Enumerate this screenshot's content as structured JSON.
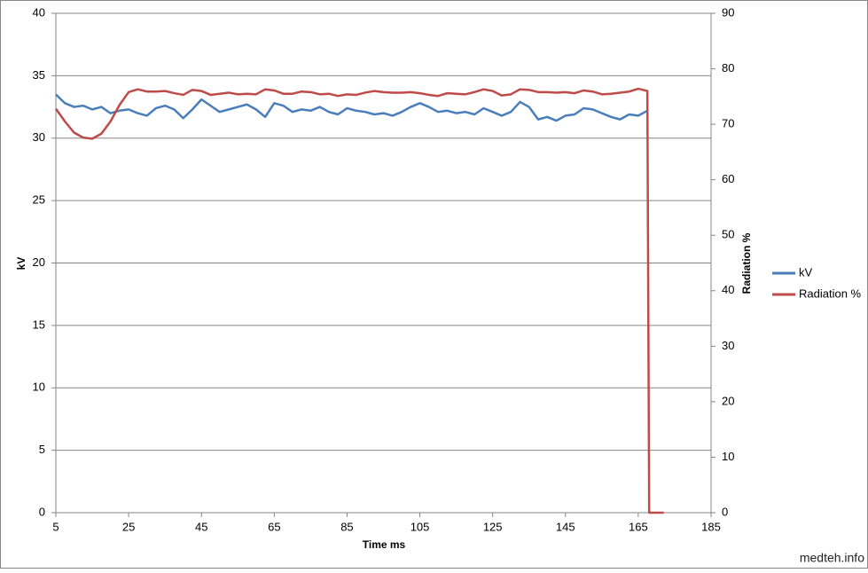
{
  "chart_data": {
    "type": "line",
    "x_label": "Time ms",
    "y_label": "kV",
    "y2_label": "Radiation %",
    "watermark": "medteh.info",
    "x": [
      5,
      7.5,
      10,
      12.5,
      15,
      17.5,
      20,
      22.5,
      25,
      27.5,
      30,
      32.5,
      35,
      37.5,
      40,
      42.5,
      45,
      47.5,
      50,
      52.5,
      55,
      57.5,
      60,
      62.5,
      65,
      67.5,
      70,
      72.5,
      75,
      77.5,
      80,
      82.5,
      85,
      87.5,
      90,
      92.5,
      95,
      97.5,
      100,
      102.5,
      105,
      107.5,
      110,
      112.5,
      115,
      117.5,
      120,
      122.5,
      125,
      127.5,
      130,
      132.5,
      135,
      137.5,
      140,
      142.5,
      145,
      147.5,
      150,
      152.5,
      155,
      157.5,
      160,
      162.5,
      165,
      167.5,
      168,
      172
    ],
    "series": [
      {
        "name": "kV",
        "color": "#4a7ebb",
        "values": [
          33.5,
          32.8,
          32.5,
          32.6,
          32.3,
          32.5,
          32.0,
          32.2,
          32.3,
          32.0,
          31.8,
          32.4,
          32.6,
          32.3,
          31.6,
          32.3,
          33.1,
          32.6,
          32.1,
          32.3,
          32.5,
          32.7,
          32.3,
          31.7,
          32.8,
          32.6,
          32.1,
          32.3,
          32.2,
          32.5,
          32.1,
          31.9,
          32.4,
          32.2,
          32.1,
          31.9,
          32.0,
          31.8,
          32.1,
          32.5,
          32.8,
          32.5,
          32.1,
          32.2,
          32.0,
          32.1,
          31.9,
          32.4,
          32.1,
          31.8,
          32.1,
          32.9,
          32.5,
          31.5,
          31.7,
          31.4,
          31.8,
          31.9,
          32.4,
          32.3,
          32.0,
          31.7,
          31.5,
          31.9,
          31.8,
          32.2,
          null,
          null
        ]
      },
      {
        "name": "Radiation %",
        "color": "#be4b48",
        "axis": "y2",
        "values": [
          72.8,
          70.5,
          68.5,
          67.6,
          67.4,
          68.3,
          70.5,
          73.5,
          75.8,
          76.3,
          75.9,
          75.9,
          76.0,
          75.6,
          75.3,
          76.2,
          76.0,
          75.3,
          75.5,
          75.7,
          75.4,
          75.5,
          75.4,
          76.3,
          76.1,
          75.5,
          75.5,
          75.9,
          75.8,
          75.4,
          75.5,
          75.1,
          75.4,
          75.3,
          75.7,
          76.0,
          75.8,
          75.7,
          75.7,
          75.8,
          75.6,
          75.3,
          75.1,
          75.6,
          75.5,
          75.4,
          75.8,
          76.3,
          76.0,
          75.2,
          75.4,
          76.3,
          76.2,
          75.8,
          75.8,
          75.7,
          75.8,
          75.6,
          76.1,
          75.9,
          75.4,
          75.5,
          75.7,
          75.9,
          76.4,
          76.0,
          0,
          0
        ]
      }
    ],
    "xlim": [
      5,
      185
    ],
    "xticks": [
      5,
      25,
      45,
      65,
      85,
      105,
      125,
      145,
      165,
      185
    ],
    "ylim": [
      0,
      40
    ],
    "yticks": [
      0,
      5,
      10,
      15,
      20,
      25,
      30,
      35,
      40
    ],
    "y2lim": [
      0,
      90
    ],
    "y2ticks": [
      0,
      10,
      20,
      30,
      40,
      50,
      60,
      70,
      80,
      90
    ],
    "grid": true,
    "legend": "right"
  }
}
